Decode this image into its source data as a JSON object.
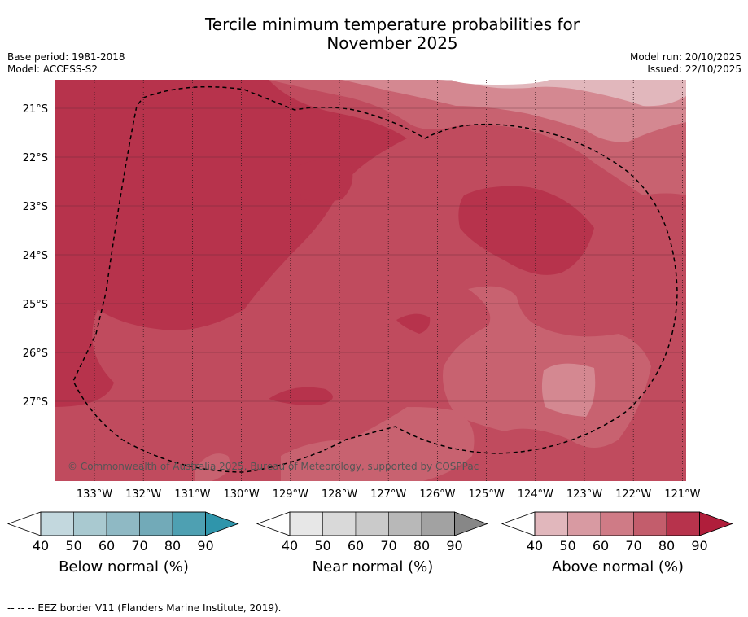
{
  "title_line1": "Tercile minimum temperature probabilities for",
  "title_line2": "November 2025",
  "meta_left": {
    "base_period": "Base period: 1981-2018",
    "model": "Model: ACCESS-S2"
  },
  "meta_right": {
    "model_run": "Model run: 20/10/2025",
    "issued": "Issued: 22/10/2025"
  },
  "copyright": "© Commonwealth of Australia 2025, Bureau of Meteorology, supported by COSPPac",
  "footnote": "--  --  -- EEZ border V11 (Flanders Marine Institute, 2019).",
  "lat_ticks": [
    "21°S",
    "22°S",
    "23°S",
    "24°S",
    "25°S",
    "26°S",
    "27°S"
  ],
  "lon_ticks": [
    "133°W",
    "132°W",
    "131°W",
    "130°W",
    "129°W",
    "128°W",
    "127°W",
    "126°W",
    "125°W",
    "124°W",
    "123°W",
    "122°W",
    "121°W"
  ],
  "colorbars": [
    {
      "label": "Below normal (%)",
      "ticks": [
        "40",
        "50",
        "60",
        "70",
        "80",
        "90"
      ],
      "colors": [
        "#c3d8de",
        "#a9c9d0",
        "#8fb9c4",
        "#72aab8",
        "#4ea0b2",
        "#2f95ab"
      ]
    },
    {
      "label": "Near normal (%)",
      "ticks": [
        "40",
        "50",
        "60",
        "70",
        "80",
        "90"
      ],
      "colors": [
        "#e7e7e7",
        "#d9d9d9",
        "#cacaca",
        "#b8b8b8",
        "#a2a2a2",
        "#878787"
      ]
    },
    {
      "label": "Above normal (%)",
      "ticks": [
        "40",
        "50",
        "60",
        "70",
        "80",
        "90"
      ],
      "colors": [
        "#e1b7bc",
        "#d89aa2",
        "#cf7b86",
        "#c35d6c",
        "#b7334c",
        "#b01e3b"
      ]
    }
  ],
  "map_colors": {
    "dark": "#b7334c",
    "mid": "#c04b5e",
    "light": "#c86270",
    "lighter": "#d48891",
    "lightest": "#e1b7bc"
  }
}
